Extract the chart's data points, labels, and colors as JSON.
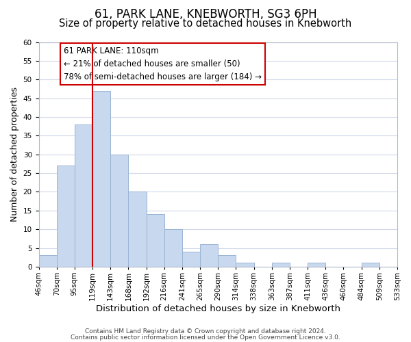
{
  "title": "61, PARK LANE, KNEBWORTH, SG3 6PH",
  "subtitle": "Size of property relative to detached houses in Knebworth",
  "xlabel": "Distribution of detached houses by size in Knebworth",
  "ylabel": "Number of detached properties",
  "bin_labels": [
    "46sqm",
    "70sqm",
    "95sqm",
    "119sqm",
    "143sqm",
    "168sqm",
    "192sqm",
    "216sqm",
    "241sqm",
    "265sqm",
    "290sqm",
    "314sqm",
    "338sqm",
    "363sqm",
    "387sqm",
    "411sqm",
    "436sqm",
    "460sqm",
    "484sqm",
    "509sqm",
    "533sqm"
  ],
  "bar_values": [
    3,
    27,
    38,
    47,
    30,
    20,
    14,
    10,
    4,
    6,
    3,
    1,
    0,
    1,
    0,
    1,
    0,
    0,
    1,
    0
  ],
  "bar_color": "#c8d8ee",
  "bar_edge_color": "#9ab4d4",
  "grid_color": "#d0d8e8",
  "vline_x": 3.0,
  "vline_color": "#cc0000",
  "annotation_text": "61 PARK LANE: 110sqm\n← 21% of detached houses are smaller (50)\n78% of semi-detached houses are larger (184) →",
  "annotation_box_color": "white",
  "annotation_box_edgecolor": "#cc0000",
  "footer1": "Contains HM Land Registry data © Crown copyright and database right 2024.",
  "footer2": "Contains public sector information licensed under the Open Government Licence v3.0.",
  "ylim": [
    0,
    60
  ],
  "yticks": [
    0,
    5,
    10,
    15,
    20,
    25,
    30,
    35,
    40,
    45,
    50,
    55,
    60
  ],
  "title_fontsize": 12,
  "subtitle_fontsize": 10.5,
  "axis_label_fontsize": 9,
  "tick_fontsize": 7.5,
  "annotation_fontsize": 8.5,
  "footer_fontsize": 6.5
}
